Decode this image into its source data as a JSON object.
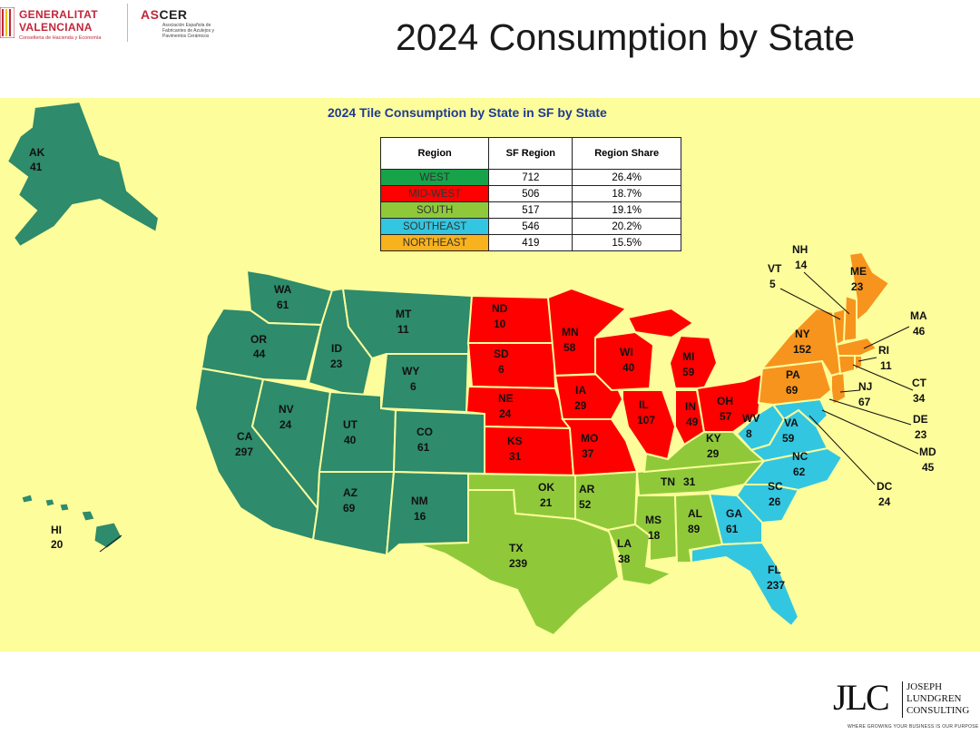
{
  "header": {
    "gv_line1": "GENERALITAT",
    "gv_line2": "VALENCIANA",
    "gv_sub": "Conselleria de Hacienda y Economía",
    "ascer_word_a": "AS",
    "ascer_word_b": "CER",
    "ascer_sub": "Asociación Española de Fabricantes de Azulejos y Pavimentos Cerámicos"
  },
  "slide_title": "2024 Consumption by State",
  "map": {
    "title": "2024 Tile Consumption by State in SF by State",
    "colors": {
      "background": "#fdfd9b",
      "west": "#2e8b6b",
      "midwest": "#ff0000",
      "south": "#8fc93a",
      "southeast": "#33c6e0",
      "northeast": "#f7941d"
    }
  },
  "region_table": {
    "headers": [
      "Region",
      "SF Region",
      "Region Share"
    ],
    "rows": [
      {
        "region": "WEST",
        "sf": "712",
        "share": "26.4%",
        "color": "#16a34a"
      },
      {
        "region": "MID-WEST",
        "sf": "506",
        "share": "18.7%",
        "color": "#ff0000"
      },
      {
        "region": "SOUTH",
        "sf": "517",
        "share": "19.1%",
        "color": "#8fc93a"
      },
      {
        "region": "SOUTHEAST",
        "sf": "546",
        "share": "20.2%",
        "color": "#33c6e0"
      },
      {
        "region": "NORTHEAST",
        "sf": "419",
        "share": "15.5%",
        "color": "#f7b21d"
      }
    ]
  },
  "states": [
    {
      "abbr": "AK",
      "value": "41",
      "region": "west"
    },
    {
      "abbr": "HI",
      "value": "20",
      "region": "west"
    },
    {
      "abbr": "WA",
      "value": "61",
      "region": "west"
    },
    {
      "abbr": "OR",
      "value": "44",
      "region": "west"
    },
    {
      "abbr": "CA",
      "value": "297",
      "region": "west"
    },
    {
      "abbr": "ID",
      "value": "23",
      "region": "west"
    },
    {
      "abbr": "NV",
      "value": "24",
      "region": "west"
    },
    {
      "abbr": "MT",
      "value": "11",
      "region": "west"
    },
    {
      "abbr": "WY",
      "value": "6",
      "region": "west"
    },
    {
      "abbr": "UT",
      "value": "40",
      "region": "west"
    },
    {
      "abbr": "CO",
      "value": "61",
      "region": "west"
    },
    {
      "abbr": "AZ",
      "value": "69",
      "region": "west"
    },
    {
      "abbr": "NM",
      "value": "16",
      "region": "west"
    },
    {
      "abbr": "ND",
      "value": "10",
      "region": "midwest"
    },
    {
      "abbr": "SD",
      "value": "6",
      "region": "midwest"
    },
    {
      "abbr": "NE",
      "value": "24",
      "region": "midwest"
    },
    {
      "abbr": "KS",
      "value": "31",
      "region": "midwest"
    },
    {
      "abbr": "MN",
      "value": "58",
      "region": "midwest"
    },
    {
      "abbr": "IA",
      "value": "29",
      "region": "midwest"
    },
    {
      "abbr": "MO",
      "value": "37",
      "region": "midwest"
    },
    {
      "abbr": "WI",
      "value": "40",
      "region": "midwest"
    },
    {
      "abbr": "IL",
      "value": "107",
      "region": "midwest"
    },
    {
      "abbr": "MI",
      "value": "59",
      "region": "midwest"
    },
    {
      "abbr": "IN",
      "value": "49",
      "region": "midwest"
    },
    {
      "abbr": "OH",
      "value": "57",
      "region": "midwest"
    },
    {
      "abbr": "OK",
      "value": "21",
      "region": "south"
    },
    {
      "abbr": "TX",
      "value": "239",
      "region": "south"
    },
    {
      "abbr": "AR",
      "value": "52",
      "region": "south"
    },
    {
      "abbr": "LA",
      "value": "38",
      "region": "south"
    },
    {
      "abbr": "MS",
      "value": "18",
      "region": "south"
    },
    {
      "abbr": "AL",
      "value": "89",
      "region": "south"
    },
    {
      "abbr": "TN",
      "value": "31",
      "region": "south"
    },
    {
      "abbr": "KY",
      "value": "29",
      "region": "south"
    },
    {
      "abbr": "WV",
      "value": "8",
      "region": "southeast"
    },
    {
      "abbr": "VA",
      "value": "59",
      "region": "southeast"
    },
    {
      "abbr": "NC",
      "value": "62",
      "region": "southeast"
    },
    {
      "abbr": "SC",
      "value": "26",
      "region": "southeast"
    },
    {
      "abbr": "GA",
      "value": "61",
      "region": "southeast"
    },
    {
      "abbr": "FL",
      "value": "237",
      "region": "southeast"
    },
    {
      "abbr": "DC",
      "value": "24",
      "region": "southeast"
    },
    {
      "abbr": "MD",
      "value": "45",
      "region": "southeast"
    },
    {
      "abbr": "DE",
      "value": "23",
      "region": "southeast"
    },
    {
      "abbr": "NY",
      "value": "152",
      "region": "northeast"
    },
    {
      "abbr": "PA",
      "value": "69",
      "region": "northeast"
    },
    {
      "abbr": "NJ",
      "value": "67",
      "region": "northeast"
    },
    {
      "abbr": "CT",
      "value": "34",
      "region": "northeast"
    },
    {
      "abbr": "RI",
      "value": "11",
      "region": "northeast"
    },
    {
      "abbr": "MA",
      "value": "46",
      "region": "northeast"
    },
    {
      "abbr": "VT",
      "value": "5",
      "region": "northeast"
    },
    {
      "abbr": "NH",
      "value": "14",
      "region": "northeast"
    },
    {
      "abbr": "ME",
      "value": "23",
      "region": "northeast"
    }
  ],
  "footer": {
    "jlc_mark": "JLC",
    "jlc_name": "JOSEPH\nLUNDGREN\nCONSULTING",
    "jlc_tag": "WHERE GROWING YOUR BUSINESS IS OUR PURPOSE"
  }
}
